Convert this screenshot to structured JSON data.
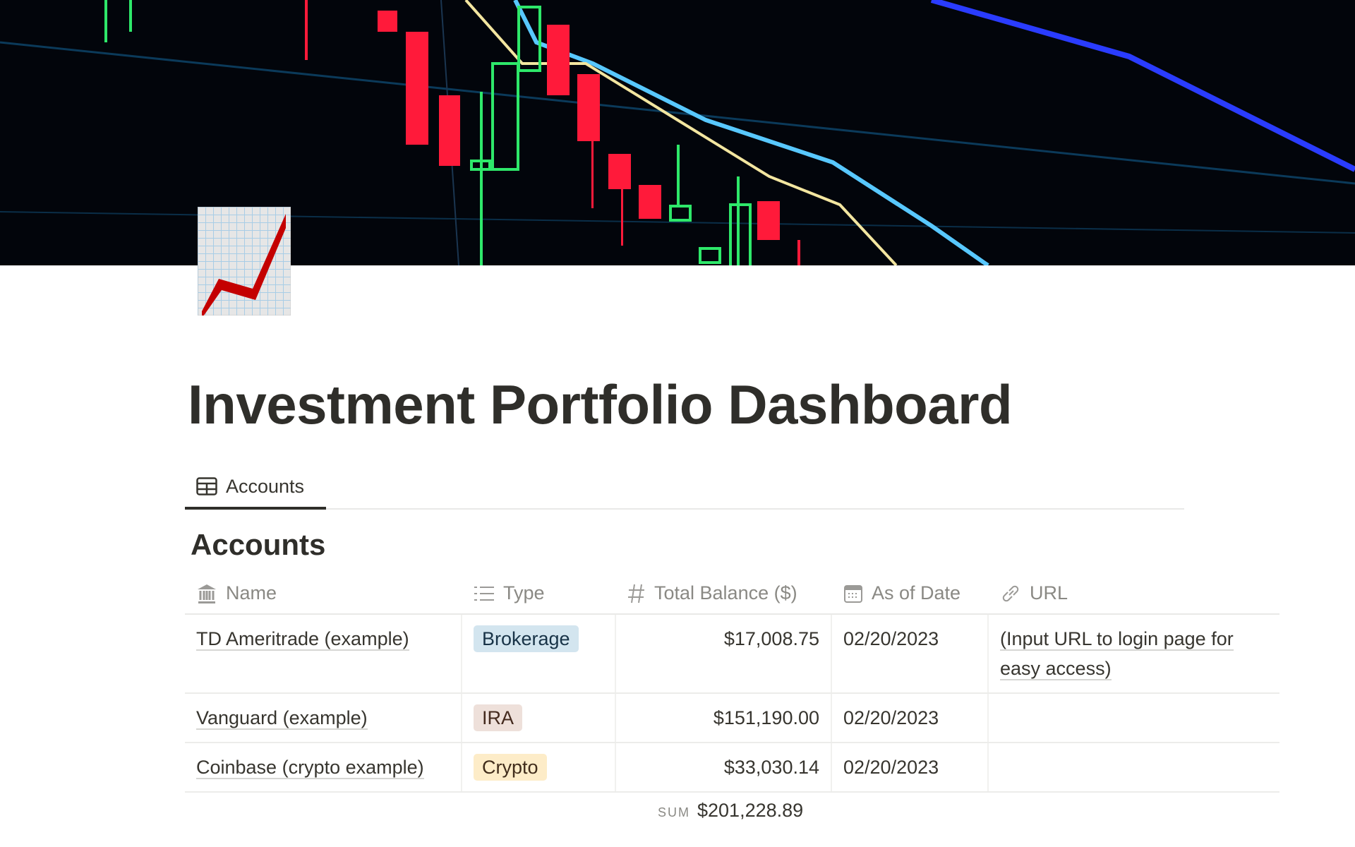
{
  "page": {
    "title": "Investment Portfolio Dashboard",
    "icon": "chart-increasing-emoji",
    "cover": "candlestick-chart-photo"
  },
  "tabs": [
    {
      "label": "Accounts",
      "icon": "table-icon",
      "active": true
    }
  ],
  "section": {
    "heading": "Accounts"
  },
  "table": {
    "columns": [
      {
        "label": "Name",
        "icon": "bank-icon"
      },
      {
        "label": "Type",
        "icon": "list-icon"
      },
      {
        "label": "Total Balance ($)",
        "icon": "hash-icon"
      },
      {
        "label": "As of Date",
        "icon": "calendar-icon"
      },
      {
        "label": "URL",
        "icon": "link-icon"
      }
    ],
    "rows": [
      {
        "name": "TD Ameritrade (example)",
        "type": "Brokerage",
        "balance": "$17,008.75",
        "date": "02/20/2023",
        "url": "(Input URL to login page for easy access)"
      },
      {
        "name": "Vanguard (example)",
        "type": "IRA",
        "balance": "$151,190.00",
        "date": "02/20/2023",
        "url": ""
      },
      {
        "name": "Coinbase (crypto example)",
        "type": "Crypto",
        "balance": "$33,030.14",
        "date": "02/20/2023",
        "url": ""
      }
    ],
    "tag_colors": {
      "Brokerage": {
        "bg": "#d3e5ef",
        "fg": "#183347"
      },
      "IRA": {
        "bg": "#eee0da",
        "fg": "#442a1e"
      },
      "Crypto": {
        "bg": "#fdecc8",
        "fg": "#402c1b"
      }
    },
    "footer": {
      "label": "SUM",
      "value": "$201,228.89"
    }
  }
}
